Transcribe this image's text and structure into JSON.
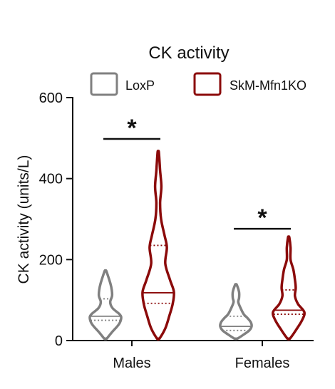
{
  "chart_data": {
    "type": "violin",
    "title": "CK activity",
    "xlabel": "",
    "ylabel": "CK activity (units/L)",
    "ylim": [
      0,
      600
    ],
    "yticks": [
      0,
      200,
      400,
      600
    ],
    "categories": [
      "Males",
      "Females"
    ],
    "legend_position": "top",
    "grid": false,
    "series": [
      {
        "name": "LoxP",
        "color": "#808080",
        "violins": [
          {
            "category": "Males",
            "min": 5,
            "max": 172,
            "median": 60,
            "q1": 50,
            "q3": 103,
            "density": [
              [
                5,
                0.08
              ],
              [
                20,
                0.4
              ],
              [
                40,
                0.85
              ],
              [
                55,
                1.0
              ],
              [
                65,
                0.9
              ],
              [
                80,
                0.45
              ],
              [
                95,
                0.3
              ],
              [
                110,
                0.42
              ],
              [
                125,
                0.4
              ],
              [
                140,
                0.32
              ],
              [
                155,
                0.2
              ],
              [
                172,
                0.05
              ]
            ]
          },
          {
            "category": "Females",
            "min": 5,
            "max": 138,
            "median": 35,
            "q1": 25,
            "q3": 60,
            "density": [
              [
                5,
                0.1
              ],
              [
                15,
                0.5
              ],
              [
                25,
                0.85
              ],
              [
                35,
                1.0
              ],
              [
                45,
                0.95
              ],
              [
                55,
                0.75
              ],
              [
                65,
                0.5
              ],
              [
                80,
                0.3
              ],
              [
                95,
                0.15
              ],
              [
                105,
                0.2
              ],
              [
                120,
                0.2
              ],
              [
                138,
                0.05
              ]
            ]
          }
        ]
      },
      {
        "name": "SkM-Mfn1KO",
        "color": "#8b0a0a",
        "violins": [
          {
            "category": "Males",
            "min": 5,
            "max": 465,
            "median": 118,
            "q1": 92,
            "q3": 235,
            "density": [
              [
                5,
                0.08
              ],
              [
                30,
                0.45
              ],
              [
                60,
                0.7
              ],
              [
                90,
                0.92
              ],
              [
                120,
                1.0
              ],
              [
                150,
                0.75
              ],
              [
                190,
                0.45
              ],
              [
                230,
                0.55
              ],
              [
                260,
                0.4
              ],
              [
                300,
                0.18
              ],
              [
                340,
                0.12
              ],
              [
                380,
                0.2
              ],
              [
                420,
                0.12
              ],
              [
                465,
                0.04
              ]
            ]
          },
          {
            "category": "Females",
            "min": 5,
            "max": 255,
            "median": 75,
            "q1": 65,
            "q3": 125,
            "density": [
              [
                5,
                0.08
              ],
              [
                25,
                0.45
              ],
              [
                50,
                0.85
              ],
              [
                70,
                1.0
              ],
              [
                90,
                0.6
              ],
              [
                110,
                0.4
              ],
              [
                130,
                0.45
              ],
              [
                150,
                0.4
              ],
              [
                175,
                0.3
              ],
              [
                200,
                0.12
              ],
              [
                230,
                0.12
              ],
              [
                255,
                0.04
              ]
            ]
          }
        ]
      }
    ],
    "annotations": [
      {
        "text": "*",
        "between": [
          "LoxP",
          "SkM-Mfn1KO"
        ],
        "category": "Males",
        "y": 498
      },
      {
        "text": "*",
        "between": [
          "LoxP",
          "SkM-Mfn1KO"
        ],
        "category": "Females",
        "y": 276
      }
    ]
  }
}
